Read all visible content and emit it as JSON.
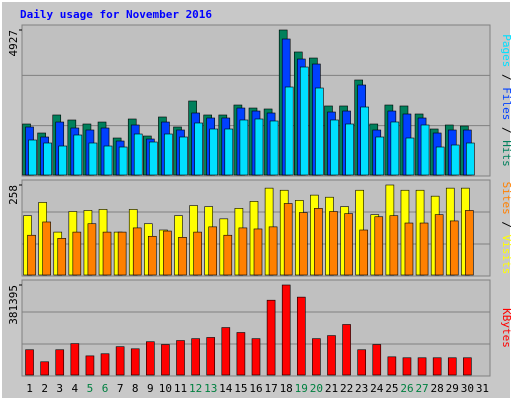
{
  "chart_data": [
    {
      "type": "bar",
      "title": "Daily usage for November 2016",
      "legend_separator": " / ",
      "categories": [
        "1",
        "2",
        "3",
        "4",
        "5",
        "6",
        "7",
        "8",
        "9",
        "10",
        "11",
        "12",
        "13",
        "14",
        "15",
        "16",
        "17",
        "18",
        "19",
        "20",
        "21",
        "22",
        "23",
        "24",
        "25",
        "26",
        "27",
        "28",
        "29",
        "30",
        "31"
      ],
      "category_colors": [
        "#000000",
        "#000000",
        "#000000",
        "#000000",
        "#008040",
        "#008040",
        "#000000",
        "#000000",
        "#000000",
        "#000000",
        "#000000",
        "#008040",
        "#008040",
        "#000000",
        "#000000",
        "#000000",
        "#000000",
        "#000000",
        "#008040",
        "#008040",
        "#000000",
        "#000000",
        "#000000",
        "#000000",
        "#000000",
        "#008040",
        "#008040",
        "#000000",
        "#000000",
        "#000000",
        "#000000"
      ],
      "ylim": [
        0,
        4927
      ],
      "yticks": [
        4927
      ],
      "series": [
        {
          "name": "Pages",
          "color": "#00e0ff",
          "values": [
            1189,
            1087,
            985,
            1359,
            1087,
            985,
            951,
            1393,
            1121,
            1393,
            1291,
            1767,
            1563,
            1563,
            1869,
            1903,
            1835,
            2990,
            3669,
            2956,
            1869,
            1733,
            2310,
            1291,
            1801,
            1257,
            1699,
            951,
            1019,
            1087,
            null
          ]
        },
        {
          "name": "Files",
          "color": "#0040ff",
          "values": [
            1631,
            1291,
            1800,
            1597,
            1529,
            1597,
            1155,
            1699,
            1223,
            1800,
            1529,
            2107,
            1937,
            1937,
            2276,
            2174,
            2107,
            4621,
            3941,
            3771,
            2140,
            2174,
            3058,
            1529,
            2174,
            2073,
            1937,
            1427,
            1529,
            1529,
            null
          ]
        },
        {
          "name": "Hits",
          "color": "#00805c",
          "values": [
            1733,
            1427,
            2039,
            1869,
            1733,
            1800,
            1257,
            1903,
            1325,
            1971,
            1631,
            2514,
            2039,
            2039,
            2378,
            2276,
            2243,
            4927,
            4180,
            3975,
            2345,
            2345,
            3228,
            1733,
            2378,
            2345,
            2073,
            1563,
            1699,
            1665,
            null
          ]
        }
      ]
    },
    {
      "type": "bar",
      "ylim": [
        0,
        258
      ],
      "yticks": [
        258
      ],
      "series": [
        {
          "name": "Sites",
          "color": "#ff8000",
          "values": [
            114,
            152,
            105,
            123,
            147,
            123,
            123,
            135,
            111,
            126,
            108,
            123,
            138,
            114,
            135,
            132,
            138,
            205,
            179,
            191,
            182,
            176,
            129,
            167,
            170,
            149,
            149,
            173,
            155,
            185,
            null
          ]
        },
        {
          "name": "Visits",
          "color": "#ffff00",
          "values": [
            170,
            208,
            123,
            182,
            185,
            188,
            123,
            188,
            147,
            129,
            170,
            199,
            196,
            161,
            191,
            211,
            249,
            243,
            214,
            229,
            223,
            196,
            243,
            173,
            258,
            243,
            243,
            226,
            249,
            249,
            null
          ]
        }
      ]
    },
    {
      "type": "bar",
      "ylim": [
        0,
        381395
      ],
      "yticks": [
        381395
      ],
      "series": [
        {
          "name": "KBytes",
          "color": "#ff0000",
          "values": [
            107000,
            56000,
            107000,
            133000,
            81000,
            90000,
            120000,
            111000,
            141000,
            129000,
            146000,
            154000,
            159000,
            201000,
            180000,
            154000,
            317000,
            381395,
            330000,
            154000,
            167000,
            214000,
            107000,
            129000,
            77000,
            73000,
            73000,
            73000,
            73000,
            73000,
            null
          ]
        }
      ]
    }
  ]
}
